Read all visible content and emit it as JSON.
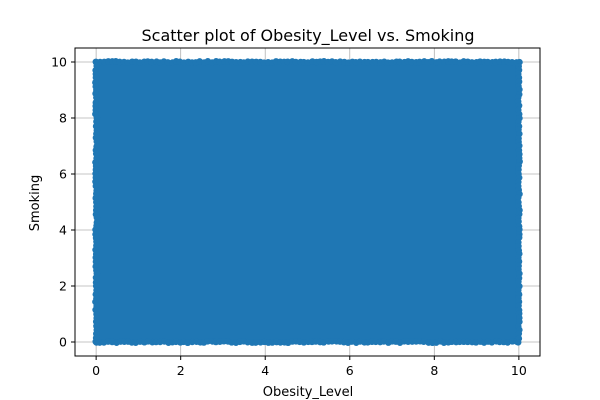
{
  "chart_data": {
    "type": "scatter",
    "title": "Scatter plot of Obesity_Level vs. Smoking",
    "xlabel": "Obesity_Level",
    "ylabel": "Smoking",
    "xlim": [
      -0.5,
      10.5
    ],
    "ylim": [
      -0.5,
      10.5
    ],
    "xticks": [
      0,
      2,
      4,
      6,
      8,
      10
    ],
    "yticks": [
      0,
      2,
      4,
      6,
      8,
      10
    ],
    "x_tick_labels": [
      "0",
      "2",
      "4",
      "6",
      "8",
      "10"
    ],
    "y_tick_labels": [
      "0",
      "2",
      "4",
      "6",
      "8",
      "10"
    ],
    "grid": true,
    "marker_color": "#1f77b4",
    "points_description": "dense uniform cloud covering x 0–10, y 0–10",
    "point_x_range": [
      0,
      10
    ],
    "point_y_range": [
      0,
      10
    ]
  }
}
